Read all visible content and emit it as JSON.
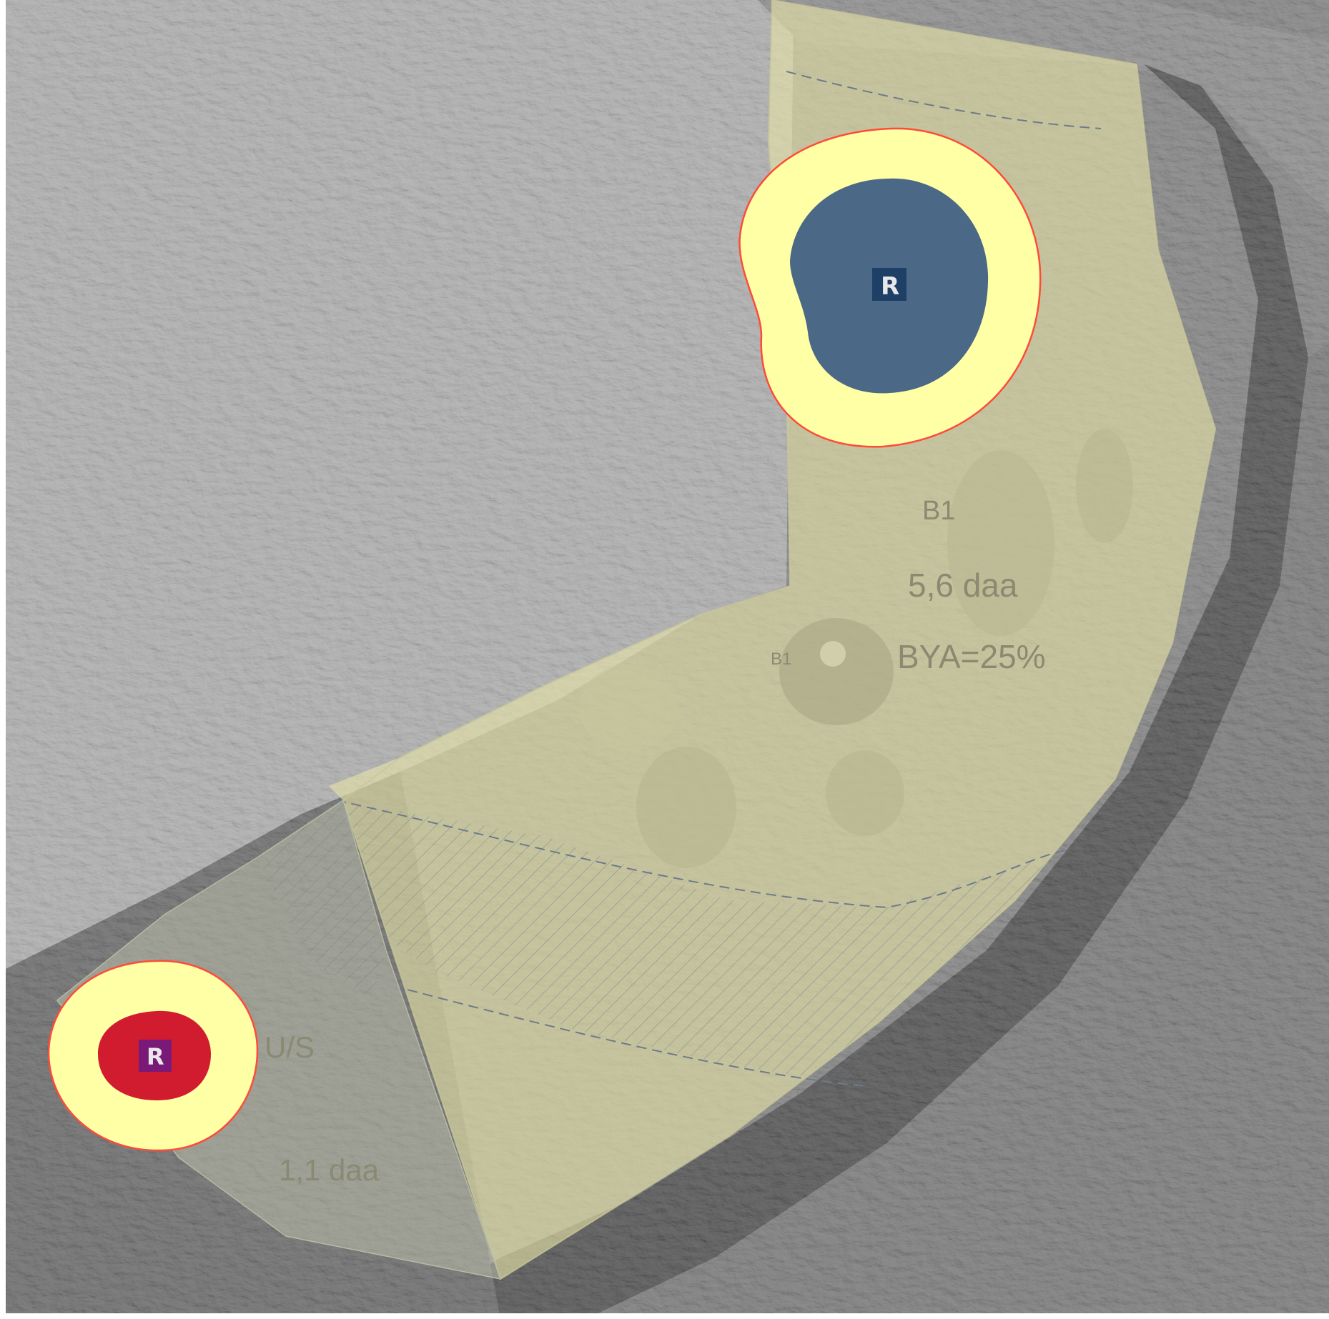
{
  "map": {
    "type": "hillshade-overlay",
    "zones": [
      {
        "id": "B1",
        "code": "B1",
        "area": "5,6 daa",
        "bya": "BYA=25%"
      },
      {
        "id": "US",
        "code": "U/S",
        "area": "1,1 daa"
      }
    ],
    "point_label": "B1",
    "markers": [
      {
        "name": "marker-large",
        "letter": "R",
        "fill": "#4b6886",
        "ring": "#ffffa6",
        "outline": "#ff4a3a"
      },
      {
        "name": "marker-small",
        "letter": "R",
        "fill": "#d01c2e",
        "ring": "#ffffa6",
        "outline": "#ff4a3a",
        "badge": "#7a1a78"
      }
    ],
    "colors": {
      "zone_fill": "#e6e4a8",
      "hatch": "#6d7b89",
      "terrain_light": "#d6d6d6",
      "terrain_dark": "#6a6a6a"
    }
  }
}
